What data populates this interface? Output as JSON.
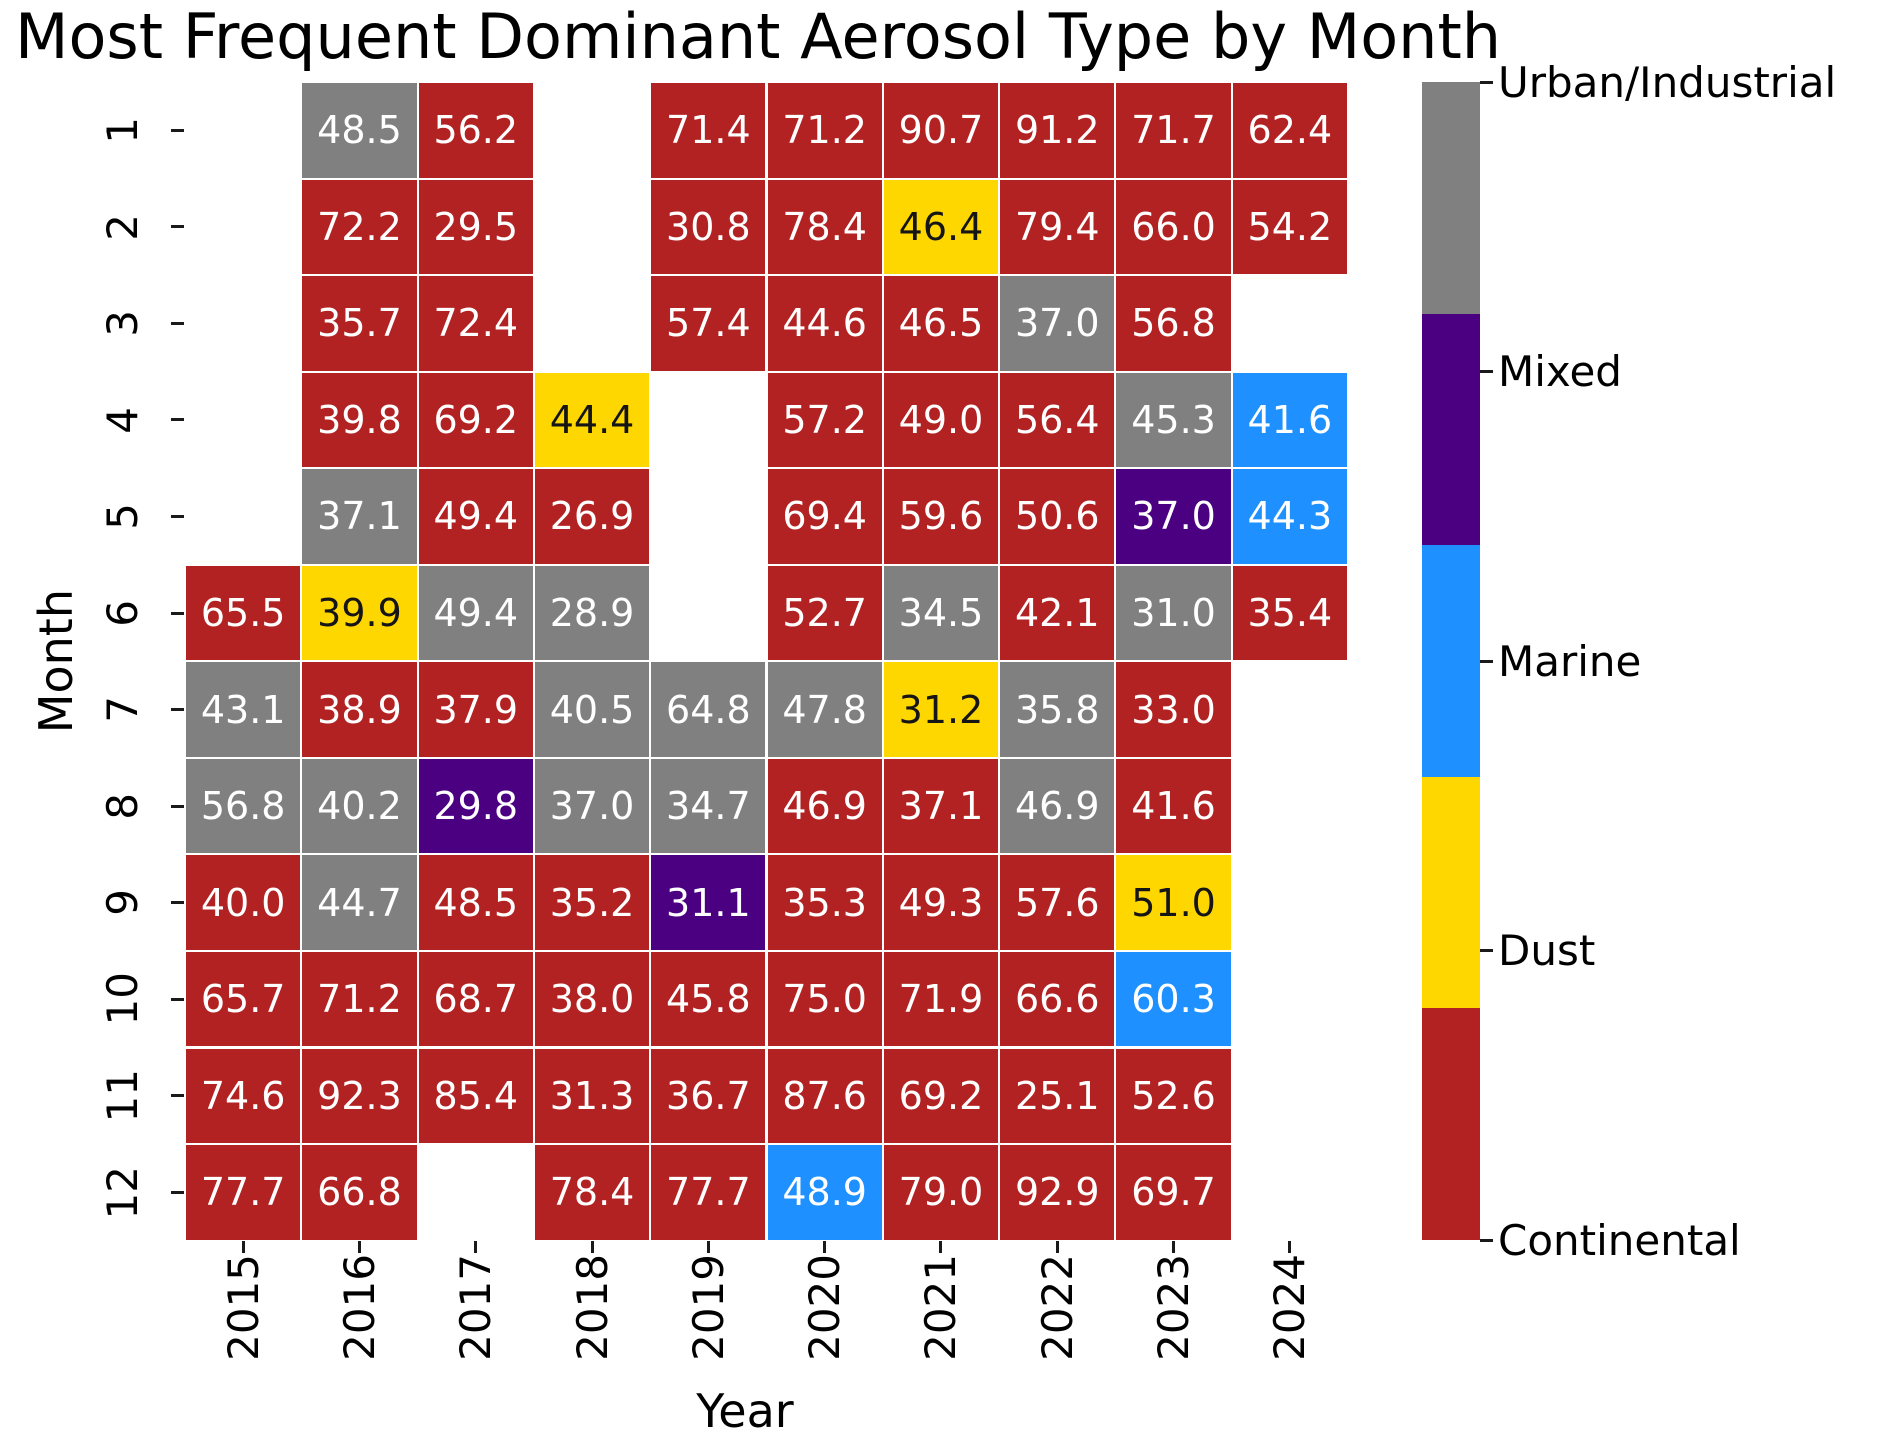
{
  "title": "Most Frequent Dominant Aerosol Type by Month",
  "axes": {
    "x_label": "Year",
    "y_label": "Month"
  },
  "colors": {
    "urban": "#808080",
    "mixed": "#4B0082",
    "marine": "#1E90FF",
    "dust": "#FFD700",
    "continental": "#B22222",
    "annot_light": "#ffffff",
    "annot_dark": "#151515",
    "tick": "#1a1a1a"
  },
  "chart_data": {
    "type": "heatmap",
    "title": "Most Frequent Dominant Aerosol Type by Month",
    "xlabel": "Year",
    "ylabel": "Month",
    "x": [
      "2015",
      "2016",
      "2017",
      "2018",
      "2019",
      "2020",
      "2021",
      "2022",
      "2023",
      "2024"
    ],
    "y": [
      "1",
      "2",
      "3",
      "4",
      "5",
      "6",
      "7",
      "8",
      "9",
      "10",
      "11",
      "12"
    ],
    "legend": [
      {
        "label": "Urban/Industrial",
        "key": "urban"
      },
      {
        "label": "Mixed",
        "key": "mixed"
      },
      {
        "label": "Marine",
        "key": "marine"
      },
      {
        "label": "Dust",
        "key": "dust"
      },
      {
        "label": "Continental",
        "key": "continental"
      }
    ],
    "cells": [
      [
        null,
        {
          "v": 48.5,
          "c": "urban"
        },
        {
          "v": 56.2,
          "c": "continental"
        },
        null,
        {
          "v": 71.4,
          "c": "continental"
        },
        {
          "v": 71.2,
          "c": "continental"
        },
        {
          "v": 90.7,
          "c": "continental"
        },
        {
          "v": 91.2,
          "c": "continental"
        },
        {
          "v": 71.7,
          "c": "continental"
        },
        {
          "v": 62.4,
          "c": "continental"
        }
      ],
      [
        null,
        {
          "v": 72.2,
          "c": "continental"
        },
        {
          "v": 29.5,
          "c": "continental"
        },
        null,
        {
          "v": 30.8,
          "c": "continental"
        },
        {
          "v": 78.4,
          "c": "continental"
        },
        {
          "v": 46.4,
          "c": "dust"
        },
        {
          "v": 79.4,
          "c": "continental"
        },
        {
          "v": 66.0,
          "c": "continental"
        },
        {
          "v": 54.2,
          "c": "continental"
        }
      ],
      [
        null,
        {
          "v": 35.7,
          "c": "continental"
        },
        {
          "v": 72.4,
          "c": "continental"
        },
        null,
        {
          "v": 57.4,
          "c": "continental"
        },
        {
          "v": 44.6,
          "c": "continental"
        },
        {
          "v": 46.5,
          "c": "continental"
        },
        {
          "v": 37.0,
          "c": "urban"
        },
        {
          "v": 56.8,
          "c": "continental"
        },
        null
      ],
      [
        null,
        {
          "v": 39.8,
          "c": "continental"
        },
        {
          "v": 69.2,
          "c": "continental"
        },
        {
          "v": 44.4,
          "c": "dust"
        },
        null,
        {
          "v": 57.2,
          "c": "continental"
        },
        {
          "v": 49.0,
          "c": "continental"
        },
        {
          "v": 56.4,
          "c": "continental"
        },
        {
          "v": 45.3,
          "c": "urban"
        },
        {
          "v": 41.6,
          "c": "marine"
        }
      ],
      [
        null,
        {
          "v": 37.1,
          "c": "urban"
        },
        {
          "v": 49.4,
          "c": "continental"
        },
        {
          "v": 26.9,
          "c": "continental"
        },
        null,
        {
          "v": 69.4,
          "c": "continental"
        },
        {
          "v": 59.6,
          "c": "continental"
        },
        {
          "v": 50.6,
          "c": "continental"
        },
        {
          "v": 37.0,
          "c": "mixed"
        },
        {
          "v": 44.3,
          "c": "marine"
        }
      ],
      [
        {
          "v": 65.5,
          "c": "continental"
        },
        {
          "v": 39.9,
          "c": "dust"
        },
        {
          "v": 49.4,
          "c": "urban"
        },
        {
          "v": 28.9,
          "c": "urban"
        },
        null,
        {
          "v": 52.7,
          "c": "continental"
        },
        {
          "v": 34.5,
          "c": "urban"
        },
        {
          "v": 42.1,
          "c": "continental"
        },
        {
          "v": 31.0,
          "c": "urban"
        },
        {
          "v": 35.4,
          "c": "continental"
        }
      ],
      [
        {
          "v": 43.1,
          "c": "urban"
        },
        {
          "v": 38.9,
          "c": "continental"
        },
        {
          "v": 37.9,
          "c": "continental"
        },
        {
          "v": 40.5,
          "c": "urban"
        },
        {
          "v": 64.8,
          "c": "urban"
        },
        {
          "v": 47.8,
          "c": "urban"
        },
        {
          "v": 31.2,
          "c": "dust"
        },
        {
          "v": 35.8,
          "c": "urban"
        },
        {
          "v": 33.0,
          "c": "continental"
        },
        null
      ],
      [
        {
          "v": 56.8,
          "c": "urban"
        },
        {
          "v": 40.2,
          "c": "urban"
        },
        {
          "v": 29.8,
          "c": "mixed"
        },
        {
          "v": 37.0,
          "c": "urban"
        },
        {
          "v": 34.7,
          "c": "urban"
        },
        {
          "v": 46.9,
          "c": "continental"
        },
        {
          "v": 37.1,
          "c": "continental"
        },
        {
          "v": 46.9,
          "c": "urban"
        },
        {
          "v": 41.6,
          "c": "continental"
        },
        null
      ],
      [
        {
          "v": 40.0,
          "c": "continental"
        },
        {
          "v": 44.7,
          "c": "urban"
        },
        {
          "v": 48.5,
          "c": "continental"
        },
        {
          "v": 35.2,
          "c": "continental"
        },
        {
          "v": 31.1,
          "c": "mixed"
        },
        {
          "v": 35.3,
          "c": "continental"
        },
        {
          "v": 49.3,
          "c": "continental"
        },
        {
          "v": 57.6,
          "c": "continental"
        },
        {
          "v": 51.0,
          "c": "dust"
        },
        null
      ],
      [
        {
          "v": 65.7,
          "c": "continental"
        },
        {
          "v": 71.2,
          "c": "continental"
        },
        {
          "v": 68.7,
          "c": "continental"
        },
        {
          "v": 38.0,
          "c": "continental"
        },
        {
          "v": 45.8,
          "c": "continental"
        },
        {
          "v": 75.0,
          "c": "continental"
        },
        {
          "v": 71.9,
          "c": "continental"
        },
        {
          "v": 66.6,
          "c": "continental"
        },
        {
          "v": 60.3,
          "c": "marine"
        },
        null
      ],
      [
        {
          "v": 74.6,
          "c": "continental"
        },
        {
          "v": 92.3,
          "c": "continental"
        },
        {
          "v": 85.4,
          "c": "continental"
        },
        {
          "v": 31.3,
          "c": "continental"
        },
        {
          "v": 36.7,
          "c": "continental"
        },
        {
          "v": 87.6,
          "c": "continental"
        },
        {
          "v": 69.2,
          "c": "continental"
        },
        {
          "v": 25.1,
          "c": "continental"
        },
        {
          "v": 52.6,
          "c": "continental"
        },
        null
      ],
      [
        {
          "v": 77.7,
          "c": "continental"
        },
        {
          "v": 66.8,
          "c": "continental"
        },
        null,
        {
          "v": 78.4,
          "c": "continental"
        },
        {
          "v": 77.7,
          "c": "continental"
        },
        {
          "v": 48.9,
          "c": "marine"
        },
        {
          "v": 79.0,
          "c": "continental"
        },
        {
          "v": 92.9,
          "c": "continental"
        },
        {
          "v": 69.7,
          "c": "continental"
        },
        null
      ]
    ],
    "layout": {
      "grid": true,
      "legend_position": "right-colorbar"
    }
  }
}
